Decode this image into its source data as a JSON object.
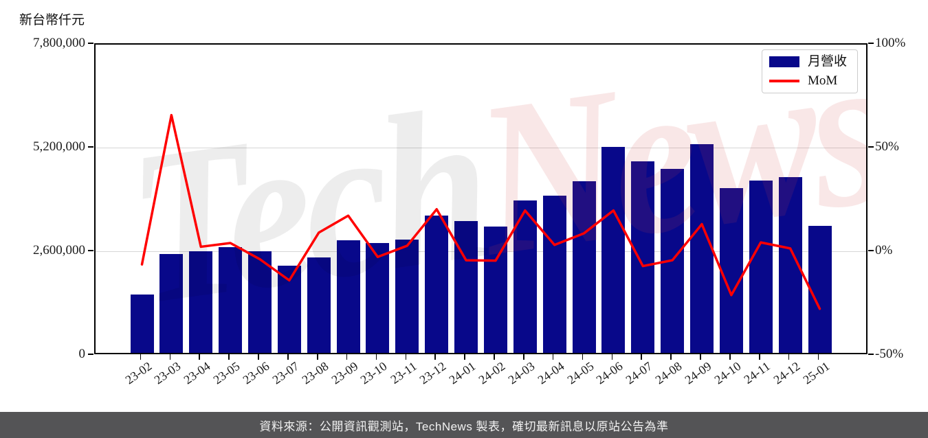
{
  "header": {
    "unit_label": "新台幣仟元"
  },
  "legend": {
    "items": [
      {
        "label": "月營收",
        "type": "bar",
        "color": "#08088a"
      },
      {
        "label": "MoM",
        "type": "line",
        "color": "#ff0000"
      }
    ]
  },
  "watermark": {
    "part1": "Tech",
    "part2": "News"
  },
  "footer": {
    "text": "資料來源：公開資訊觀測站，TechNews 製表，確切最新訊息以原站公告為準"
  },
  "chart_data": {
    "type": "bar+line",
    "title": "",
    "categories": [
      "23-02",
      "23-03",
      "23-04",
      "23-05",
      "23-06",
      "23-07",
      "23-08",
      "23-09",
      "23-10",
      "23-11",
      "23-12",
      "24-01",
      "24-02",
      "24-03",
      "24-04",
      "24-05",
      "24-06",
      "24-07",
      "24-08",
      "24-09",
      "24-10",
      "24-11",
      "24-12",
      "25-01"
    ],
    "series": [
      {
        "name": "月營收",
        "type": "bar",
        "axis": "left",
        "color": "#08088a",
        "unit": "新台幣仟元",
        "values": [
          1533000,
          2548000,
          2617000,
          2721000,
          2617000,
          2255000,
          2462000,
          2893000,
          2824000,
          2910000,
          3513000,
          3375000,
          3237000,
          3891000,
          4012000,
          4374000,
          5235000,
          4873000,
          4683000,
          5304000,
          4201000,
          4391000,
          4477000,
          3254000
        ]
      },
      {
        "name": "MoM",
        "type": "line",
        "axis": "right",
        "color": "#ff0000",
        "unit": "%",
        "values": [
          -6.0,
          66.0,
          2.5,
          4.3,
          -3.5,
          -13.7,
          9.3,
          17.5,
          -2.4,
          3.0,
          20.6,
          -4.0,
          -4.2,
          20.0,
          3.4,
          9.0,
          20.0,
          -6.8,
          -4.0,
          13.4,
          -20.8,
          4.6,
          1.7,
          -27.4
        ]
      }
    ],
    "left_axis": {
      "label": "新台幣仟元",
      "ticks": [
        "7,800,000",
        "5,200,000",
        "2,600,000",
        "0"
      ],
      "range": [
        0,
        7800000
      ]
    },
    "right_axis": {
      "ticks": [
        "100%",
        "50%",
        "0%",
        "-50%"
      ],
      "range": [
        -50,
        100
      ]
    },
    "grid": "horizontal gridlines at interior ticks",
    "legend_position": "top-right"
  }
}
